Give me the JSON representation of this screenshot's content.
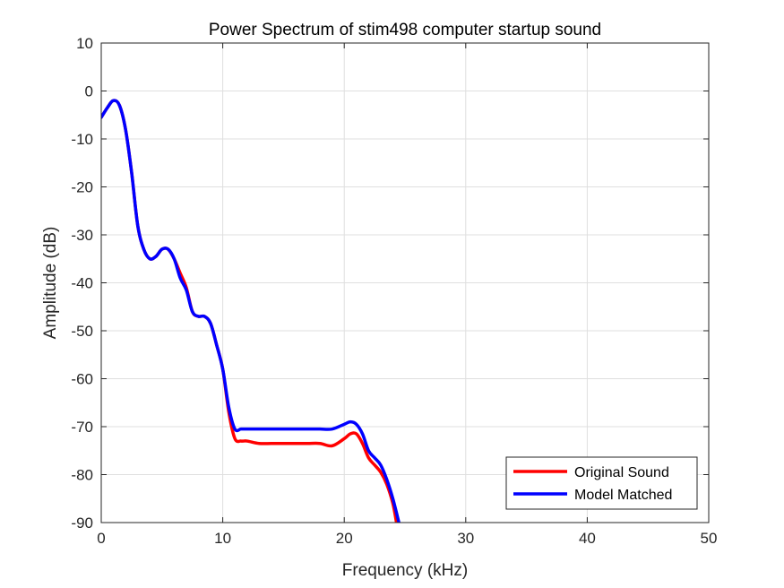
{
  "chart_data": {
    "type": "line",
    "title": "Power Spectrum of stim498 computer startup sound",
    "xlabel": "Frequency (kHz)",
    "ylabel": "Amplitude (dB)",
    "xlim": [
      0,
      50
    ],
    "ylim": [
      -90,
      10
    ],
    "xticks": [
      0,
      10,
      20,
      30,
      40,
      50
    ],
    "yticks": [
      10,
      0,
      -10,
      -20,
      -30,
      -40,
      -50,
      -60,
      -70,
      -80,
      -90
    ],
    "grid": true,
    "legend_position": "bottom-right",
    "series": [
      {
        "name": "Original Sound",
        "color": "#ff0000",
        "x": [
          0,
          0.5,
          1,
          1.5,
          2,
          2.5,
          3,
          3.5,
          4,
          4.5,
          5,
          5.5,
          6,
          6.5,
          7,
          7.5,
          8,
          8.5,
          9,
          9.5,
          10,
          10.5,
          11,
          11.5,
          12,
          13,
          14,
          15,
          16,
          17,
          18,
          19,
          20,
          20.5,
          21,
          21.5,
          22,
          22.5,
          23,
          23.5,
          24,
          24.3
        ],
        "y": [
          -5.5,
          -3.5,
          -2,
          -3,
          -8,
          -17,
          -28,
          -33,
          -35,
          -34.5,
          -33,
          -33,
          -35,
          -38,
          -41,
          -46,
          -47,
          -47,
          -48.5,
          -53,
          -58,
          -67,
          -72.5,
          -73,
          -73,
          -73.5,
          -73.5,
          -73.5,
          -73.5,
          -73.5,
          -73.5,
          -74,
          -72.5,
          -71.5,
          -71.5,
          -73.5,
          -76.5,
          -78,
          -79.5,
          -82,
          -86,
          -90
        ]
      },
      {
        "name": "Model Matched",
        "color": "#0000ff",
        "x": [
          0,
          0.5,
          1,
          1.5,
          2,
          2.5,
          3,
          3.5,
          4,
          4.5,
          5,
          5.5,
          6,
          6.5,
          7,
          7.5,
          8,
          8.5,
          9,
          9.5,
          10,
          10.5,
          11,
          11.5,
          12,
          13,
          14,
          15,
          16,
          17,
          18,
          19,
          20,
          20.5,
          21,
          21.5,
          22,
          22.5,
          23,
          23.5,
          24,
          24.5
        ],
        "y": [
          -5.5,
          -3.5,
          -2,
          -3,
          -8,
          -17,
          -28,
          -33,
          -35,
          -34.5,
          -33,
          -33,
          -35,
          -39,
          -41.5,
          -46,
          -47,
          -47,
          -48.5,
          -53,
          -58,
          -66,
          -70.5,
          -70.5,
          -70.5,
          -70.5,
          -70.5,
          -70.5,
          -70.5,
          -70.5,
          -70.5,
          -70.5,
          -69.5,
          -69,
          -69.5,
          -71.5,
          -75,
          -76.5,
          -78,
          -81,
          -85,
          -90
        ]
      }
    ]
  }
}
